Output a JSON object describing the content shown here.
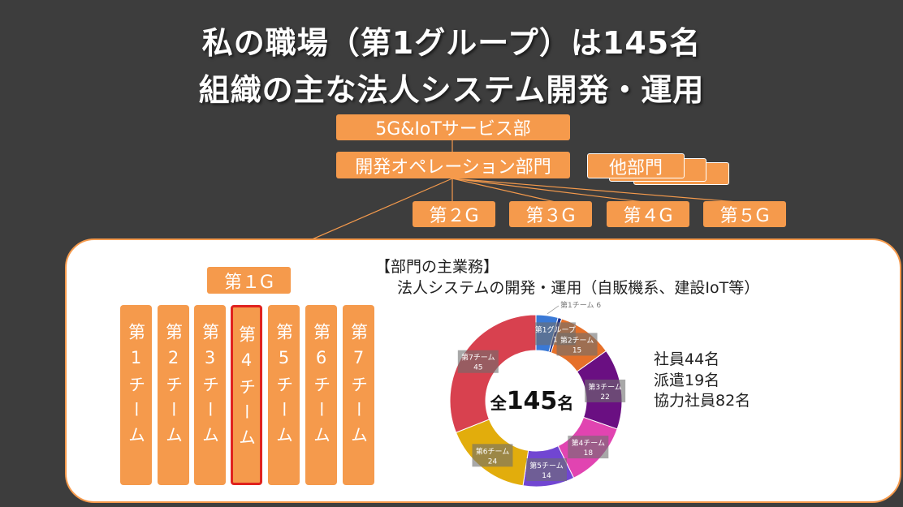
{
  "title": {
    "line1": "私の職場（第1グループ）は145名",
    "line2": "組織の主な法人システム開発・運用"
  },
  "org": {
    "top": "5G&IoTサービス部",
    "division": "開発オペレーション部門",
    "other": "他部門",
    "groups": [
      "第２G",
      "第３G",
      "第４G",
      "第５G"
    ],
    "group1": "第１G",
    "teams": [
      "第1チーム",
      "第2チーム",
      "第3チーム",
      "第4チーム",
      "第5チーム",
      "第6チーム",
      "第7チーム"
    ],
    "selected_team_index": 3,
    "box_color": "#f59a4c",
    "highlight_color": "#e0221e"
  },
  "dept": {
    "heading": "【部門の主業務】",
    "desc": "法人システムの開発・運用（自販機系、建設IoT等）"
  },
  "chart_data": {
    "type": "pie",
    "center_label": {
      "prefix": "全",
      "value": "145",
      "suffix": "名"
    },
    "slices": [
      {
        "name": "第1チーム",
        "value": 6,
        "color": "#3a79d6"
      },
      {
        "name": "第1グループ",
        "value": 1,
        "color": "#1c2f8c"
      },
      {
        "name": "第2チーム",
        "value": 15,
        "color": "#e5702a"
      },
      {
        "name": "第3チーム",
        "value": 22,
        "color": "#6a0f82"
      },
      {
        "name": "第4チーム",
        "value": 18,
        "color": "#e144b1"
      },
      {
        "name": "第5チーム",
        "value": 14,
        "color": "#7146d2"
      },
      {
        "name": "第6チーム",
        "value": 24,
        "color": "#e2ad0c"
      },
      {
        "name": "第7チーム",
        "value": 45,
        "color": "#d8414f"
      }
    ],
    "label_bg": "#6e6e6e"
  },
  "stats": {
    "employees": "社員44名",
    "dispatch": "派遣19名",
    "partners": "協力社員82名"
  }
}
